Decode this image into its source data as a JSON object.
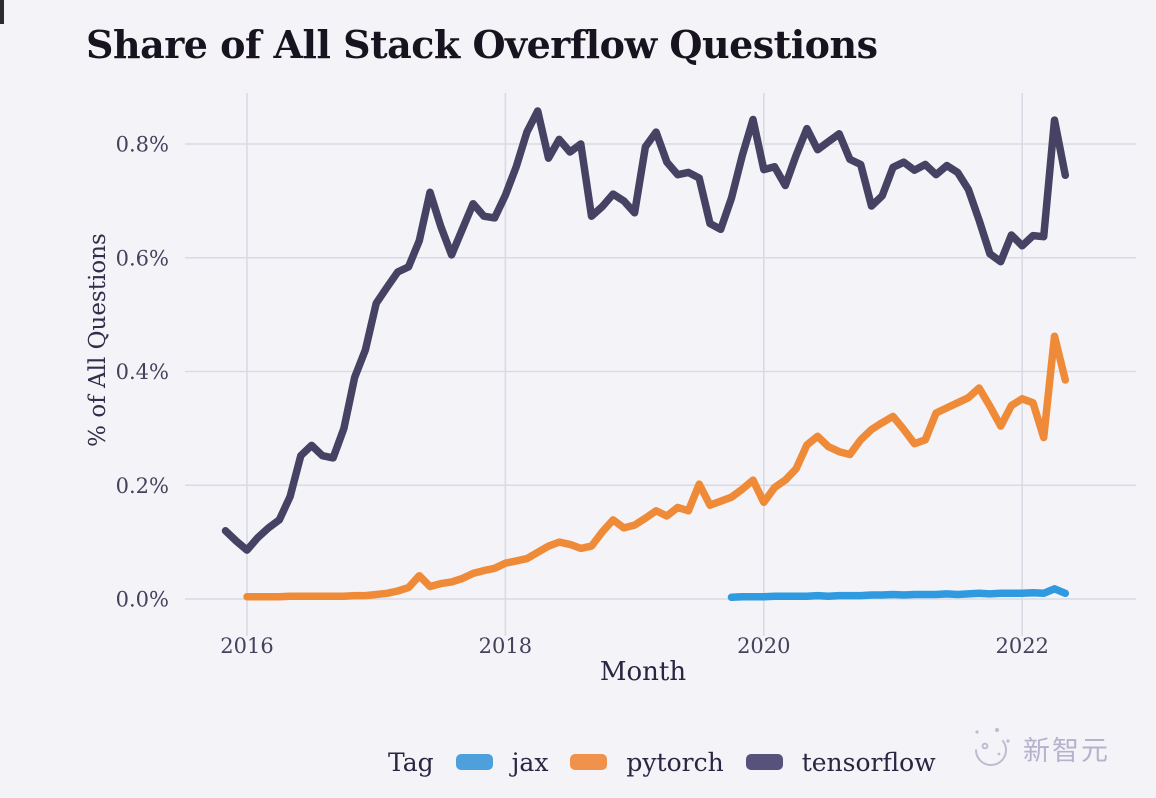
{
  "chart_data": {
    "type": "line",
    "title": "Share of All Stack Overflow Questions",
    "xlabel": "Month",
    "ylabel": "% of All Questions",
    "legend_title": "Tag",
    "legend_position": "bottom",
    "grid": true,
    "xlim": [
      2015.7,
      2022.6
    ],
    "ylim": [
      0,
      0.88
    ],
    "x_ticks": [
      {
        "v": 2016,
        "label": "2016"
      },
      {
        "v": 2018,
        "label": "2018"
      },
      {
        "v": 2020,
        "label": "2020"
      },
      {
        "v": 2022,
        "label": "2022"
      }
    ],
    "y_ticks": [
      {
        "v": 0.0,
        "label": "0.0%"
      },
      {
        "v": 0.2,
        "label": "0.2%"
      },
      {
        "v": 0.4,
        "label": "0.4%"
      },
      {
        "v": 0.6,
        "label": "0.6%"
      },
      {
        "v": 0.8,
        "label": "0.8%"
      }
    ],
    "y_unit": "percent of all questions",
    "series": [
      {
        "name": "jax",
        "color": "#2f9ae0",
        "swatch_color": "#4da0dc",
        "points": [
          [
            "2019-10",
            0.003
          ],
          [
            "2019-11",
            0.004
          ],
          [
            "2019-12",
            0.004
          ],
          [
            "2020-01",
            0.004
          ],
          [
            "2020-02",
            0.005
          ],
          [
            "2020-03",
            0.005
          ],
          [
            "2020-04",
            0.005
          ],
          [
            "2020-05",
            0.005
          ],
          [
            "2020-06",
            0.006
          ],
          [
            "2020-07",
            0.005
          ],
          [
            "2020-08",
            0.006
          ],
          [
            "2020-09",
            0.006
          ],
          [
            "2020-10",
            0.006
          ],
          [
            "2020-11",
            0.007
          ],
          [
            "2020-12",
            0.007
          ],
          [
            "2021-01",
            0.008
          ],
          [
            "2021-02",
            0.007
          ],
          [
            "2021-03",
            0.008
          ],
          [
            "2021-04",
            0.008
          ],
          [
            "2021-05",
            0.008
          ],
          [
            "2021-06",
            0.009
          ],
          [
            "2021-07",
            0.008
          ],
          [
            "2021-08",
            0.009
          ],
          [
            "2021-09",
            0.01
          ],
          [
            "2021-10",
            0.009
          ],
          [
            "2021-11",
            0.01
          ],
          [
            "2021-12",
            0.01
          ],
          [
            "2022-01",
            0.01
          ],
          [
            "2022-02",
            0.011
          ],
          [
            "2022-03",
            0.01
          ],
          [
            "2022-04",
            0.018
          ],
          [
            "2022-05",
            0.01
          ]
        ]
      },
      {
        "name": "pytorch",
        "color": "#ef8b38",
        "swatch_color": "#f0924c",
        "points": [
          [
            "2016-01",
            0.004
          ],
          [
            "2016-02",
            0.004
          ],
          [
            "2016-03",
            0.004
          ],
          [
            "2016-04",
            0.004
          ],
          [
            "2016-05",
            0.005
          ],
          [
            "2016-06",
            0.005
          ],
          [
            "2016-07",
            0.005
          ],
          [
            "2016-08",
            0.005
          ],
          [
            "2016-09",
            0.005
          ],
          [
            "2016-10",
            0.005
          ],
          [
            "2016-11",
            0.006
          ],
          [
            "2016-12",
            0.006
          ],
          [
            "2017-01",
            0.008
          ],
          [
            "2017-02",
            0.01
          ],
          [
            "2017-03",
            0.014
          ],
          [
            "2017-04",
            0.02
          ],
          [
            "2017-05",
            0.041
          ],
          [
            "2017-06",
            0.022
          ],
          [
            "2017-07",
            0.027
          ],
          [
            "2017-08",
            0.03
          ],
          [
            "2017-09",
            0.036
          ],
          [
            "2017-10",
            0.045
          ],
          [
            "2017-11",
            0.05
          ],
          [
            "2017-12",
            0.054
          ],
          [
            "2018-01",
            0.063
          ],
          [
            "2018-02",
            0.067
          ],
          [
            "2018-03",
            0.071
          ],
          [
            "2018-04",
            0.082
          ],
          [
            "2018-05",
            0.093
          ],
          [
            "2018-06",
            0.1
          ],
          [
            "2018-07",
            0.096
          ],
          [
            "2018-08",
            0.089
          ],
          [
            "2018-09",
            0.093
          ],
          [
            "2018-10",
            0.118
          ],
          [
            "2018-11",
            0.139
          ],
          [
            "2018-12",
            0.125
          ],
          [
            "2019-01",
            0.13
          ],
          [
            "2019-02",
            0.142
          ],
          [
            "2019-03",
            0.155
          ],
          [
            "2019-04",
            0.146
          ],
          [
            "2019-05",
            0.161
          ],
          [
            "2019-06",
            0.155
          ],
          [
            "2019-07",
            0.202
          ],
          [
            "2019-08",
            0.165
          ],
          [
            "2019-09",
            0.172
          ],
          [
            "2019-10",
            0.179
          ],
          [
            "2019-11",
            0.193
          ],
          [
            "2019-12",
            0.209
          ],
          [
            "2020-01",
            0.17
          ],
          [
            "2020-02",
            0.196
          ],
          [
            "2020-03",
            0.209
          ],
          [
            "2020-04",
            0.229
          ],
          [
            "2020-05",
            0.271
          ],
          [
            "2020-06",
            0.286
          ],
          [
            "2020-07",
            0.268
          ],
          [
            "2020-08",
            0.259
          ],
          [
            "2020-09",
            0.254
          ],
          [
            "2020-10",
            0.28
          ],
          [
            "2020-11",
            0.298
          ],
          [
            "2020-12",
            0.31
          ],
          [
            "2021-01",
            0.321
          ],
          [
            "2021-02",
            0.298
          ],
          [
            "2021-03",
            0.273
          ],
          [
            "2021-04",
            0.28
          ],
          [
            "2021-05",
            0.327
          ],
          [
            "2021-06",
            0.336
          ],
          [
            "2021-07",
            0.345
          ],
          [
            "2021-08",
            0.354
          ],
          [
            "2021-09",
            0.371
          ],
          [
            "2021-10",
            0.339
          ],
          [
            "2021-11",
            0.304
          ],
          [
            "2021-12",
            0.34
          ],
          [
            "2022-01",
            0.352
          ],
          [
            "2022-02",
            0.345
          ],
          [
            "2022-03",
            0.284
          ],
          [
            "2022-04",
            0.462
          ],
          [
            "2022-05",
            0.385
          ]
        ]
      },
      {
        "name": "tensorflow",
        "color": "#454263",
        "swatch_color": "#56527b",
        "points": [
          [
            "2015-11",
            0.12
          ],
          [
            "2015-12",
            0.102
          ],
          [
            "2016-01",
            0.086
          ],
          [
            "2016-02",
            0.108
          ],
          [
            "2016-03",
            0.125
          ],
          [
            "2016-04",
            0.139
          ],
          [
            "2016-05",
            0.18
          ],
          [
            "2016-06",
            0.252
          ],
          [
            "2016-07",
            0.27
          ],
          [
            "2016-08",
            0.252
          ],
          [
            "2016-09",
            0.248
          ],
          [
            "2016-10",
            0.3
          ],
          [
            "2016-11",
            0.39
          ],
          [
            "2016-12",
            0.438
          ],
          [
            "2017-01",
            0.52
          ],
          [
            "2017-02",
            0.548
          ],
          [
            "2017-03",
            0.575
          ],
          [
            "2017-04",
            0.584
          ],
          [
            "2017-05",
            0.63
          ],
          [
            "2017-06",
            0.715
          ],
          [
            "2017-07",
            0.655
          ],
          [
            "2017-08",
            0.605
          ],
          [
            "2017-09",
            0.65
          ],
          [
            "2017-10",
            0.695
          ],
          [
            "2017-11",
            0.673
          ],
          [
            "2017-12",
            0.67
          ],
          [
            "2018-01",
            0.71
          ],
          [
            "2018-02",
            0.76
          ],
          [
            "2018-03",
            0.821
          ],
          [
            "2018-04",
            0.858
          ],
          [
            "2018-05",
            0.775
          ],
          [
            "2018-06",
            0.808
          ],
          [
            "2018-07",
            0.786
          ],
          [
            "2018-08",
            0.8
          ],
          [
            "2018-09",
            0.673
          ],
          [
            "2018-10",
            0.69
          ],
          [
            "2018-11",
            0.712
          ],
          [
            "2018-12",
            0.7
          ],
          [
            "2019-01",
            0.679
          ],
          [
            "2019-02",
            0.795
          ],
          [
            "2019-03",
            0.821
          ],
          [
            "2019-04",
            0.768
          ],
          [
            "2019-05",
            0.746
          ],
          [
            "2019-06",
            0.75
          ],
          [
            "2019-07",
            0.74
          ],
          [
            "2019-08",
            0.66
          ],
          [
            "2019-09",
            0.65
          ],
          [
            "2019-10",
            0.705
          ],
          [
            "2019-11",
            0.78
          ],
          [
            "2019-12",
            0.843
          ],
          [
            "2020-01",
            0.755
          ],
          [
            "2020-02",
            0.76
          ],
          [
            "2020-03",
            0.727
          ],
          [
            "2020-04",
            0.78
          ],
          [
            "2020-05",
            0.827
          ],
          [
            "2020-06",
            0.79
          ],
          [
            "2020-07",
            0.804
          ],
          [
            "2020-08",
            0.818
          ],
          [
            "2020-09",
            0.773
          ],
          [
            "2020-10",
            0.764
          ],
          [
            "2020-11",
            0.691
          ],
          [
            "2020-12",
            0.709
          ],
          [
            "2021-01",
            0.759
          ],
          [
            "2021-02",
            0.768
          ],
          [
            "2021-03",
            0.754
          ],
          [
            "2021-04",
            0.764
          ],
          [
            "2021-05",
            0.746
          ],
          [
            "2021-06",
            0.762
          ],
          [
            "2021-07",
            0.75
          ],
          [
            "2021-08",
            0.72
          ],
          [
            "2021-09",
            0.666
          ],
          [
            "2021-10",
            0.607
          ],
          [
            "2021-11",
            0.593
          ],
          [
            "2021-12",
            0.64
          ],
          [
            "2022-01",
            0.621
          ],
          [
            "2022-02",
            0.639
          ],
          [
            "2022-03",
            0.637
          ],
          [
            "2022-04",
            0.842
          ],
          [
            "2022-05",
            0.745
          ]
        ]
      }
    ],
    "colors": {
      "gridline": "#d9dae4",
      "background": "#f4f4f8",
      "title_text": "#17131f",
      "axis_text": "#45405c"
    }
  },
  "watermark": {
    "text": "新智元"
  }
}
